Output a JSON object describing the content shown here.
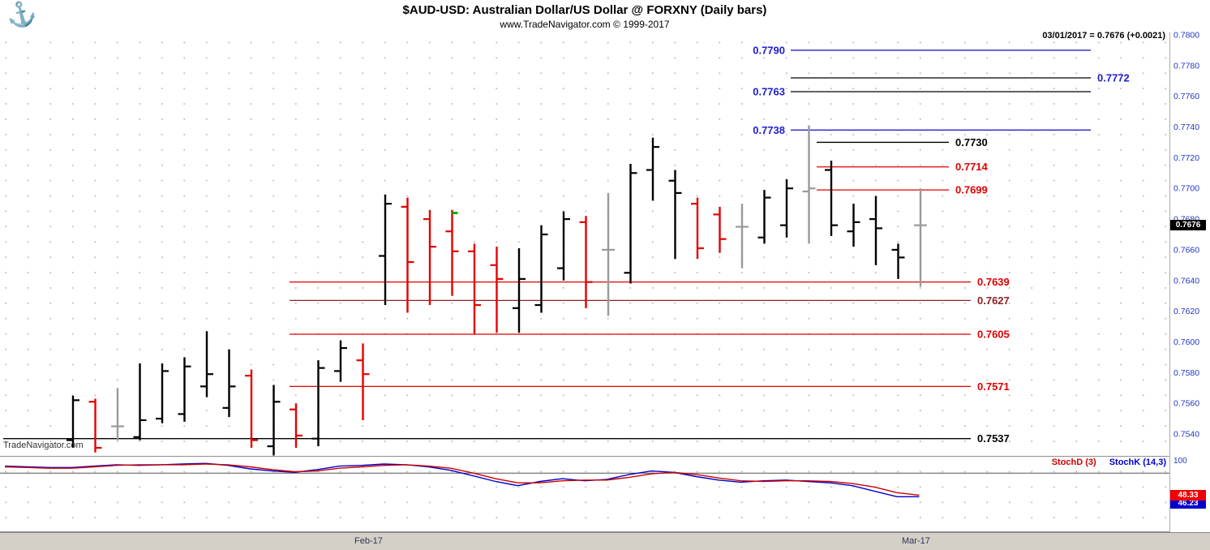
{
  "header": {
    "logo_icon": "anchor-icon",
    "title": "$AUD-USD:  Australian Dollar/US Dollar @ FORXNY  (Daily bars)",
    "subtitle": "www.TradeNavigator.com © 1999-2017",
    "quote_line": "03/01/2017 = 0.7676 (+0.0021)"
  },
  "watermark": "TradeNavigator.com",
  "price_axis": {
    "last_price_label": "0.7676",
    "last_price": 0.7676,
    "label_color": "#2336c0",
    "badge_bg": "#000000"
  },
  "stoch_panel": {
    "top_scale_label": "100",
    "legend": [
      {
        "text": "StochD (3)",
        "color": "#cc0000"
      },
      {
        "text": "StochK (14,3)",
        "color": "#0000cc"
      }
    ],
    "badges": [
      {
        "text": "48.33",
        "value": 48.33,
        "bg": "#f00000"
      },
      {
        "text": "46.23",
        "value": 46.23,
        "bg": "#0000cc"
      }
    ]
  },
  "chart_data": {
    "type": "ohlc-bar",
    "symbol": "$AUD-USD",
    "market": "FORXNY",
    "timeframe": "Daily bars",
    "last_date": "03/01/2017",
    "last_close": 0.7676,
    "change": 0.0021,
    "ylim": [
      0.754,
      0.78
    ],
    "grid": "dotted",
    "price_ticks": [
      "0.7800",
      "0.7780",
      "0.7760",
      "0.7740",
      "0.7720",
      "0.7700",
      "0.7680",
      "0.7660",
      "0.7640",
      "0.7620",
      "0.7600",
      "0.7580",
      "0.7560",
      "0.7540"
    ],
    "x_labels": [
      {
        "text": "Feb-17",
        "x": 455
      },
      {
        "text": "Mar-17",
        "x": 1130
      }
    ],
    "bars_format": [
      "open",
      "high",
      "low",
      "close",
      "color(k=black,r=red,g=gray)",
      "signal_price_optional_green"
    ],
    "bars": [
      [
        0.7536,
        0.7565,
        0.7531,
        0.7562,
        "k"
      ],
      [
        0.7561,
        0.7563,
        0.7528,
        0.7531,
        "r"
      ],
      [
        0.7545,
        0.757,
        0.7536,
        0.7545,
        "g"
      ],
      [
        0.7538,
        0.7586,
        0.7536,
        0.7549,
        "k"
      ],
      [
        0.755,
        0.7586,
        0.7547,
        0.7581,
        "k"
      ],
      [
        0.7553,
        0.759,
        0.7548,
        0.7584,
        "k"
      ],
      [
        0.7571,
        0.7607,
        0.7564,
        0.7579,
        "k"
      ],
      [
        0.7557,
        0.7595,
        0.7551,
        0.7571,
        "k"
      ],
      [
        0.7578,
        0.7582,
        0.7531,
        0.7536,
        "r"
      ],
      [
        0.7532,
        0.7572,
        0.7526,
        0.7561,
        "k"
      ],
      [
        0.7556,
        0.756,
        0.7531,
        0.7539,
        "r"
      ],
      [
        0.7537,
        0.7588,
        0.7532,
        0.7583,
        "k"
      ],
      [
        0.7581,
        0.7601,
        0.7574,
        0.7596,
        "k"
      ],
      [
        0.7588,
        0.7599,
        0.7549,
        0.7579,
        "r"
      ],
      [
        0.7656,
        0.7696,
        0.7624,
        0.769,
        "k"
      ],
      [
        0.7688,
        0.7694,
        0.7619,
        0.7652,
        "r"
      ],
      [
        0.768,
        0.7686,
        0.7624,
        0.7662,
        "r"
      ],
      [
        0.7672,
        0.7686,
        0.763,
        0.7659,
        "r",
        0.7684
      ],
      [
        0.7659,
        0.7664,
        0.7605,
        0.7624,
        "r"
      ],
      [
        0.765,
        0.7662,
        0.7606,
        0.7641,
        "r"
      ],
      [
        0.7622,
        0.7661,
        0.7606,
        0.7641,
        "k"
      ],
      [
        0.7624,
        0.7676,
        0.7619,
        0.767,
        "k"
      ],
      [
        0.7648,
        0.7685,
        0.764,
        0.768,
        "k"
      ],
      [
        0.7678,
        0.7682,
        0.7622,
        0.7639,
        "r"
      ],
      [
        0.766,
        0.7697,
        0.7617,
        0.766,
        "g"
      ],
      [
        0.7645,
        0.7716,
        0.7638,
        0.771,
        "k"
      ],
      [
        0.7712,
        0.7733,
        0.7692,
        0.7727,
        "k"
      ],
      [
        0.7705,
        0.7712,
        0.7654,
        0.7697,
        "k"
      ],
      [
        0.769,
        0.7694,
        0.7654,
        0.7661,
        "r"
      ],
      [
        0.7683,
        0.7688,
        0.7658,
        0.7667,
        "r"
      ],
      [
        0.7675,
        0.769,
        0.7648,
        0.7675,
        "g"
      ],
      [
        0.7668,
        0.7699,
        0.7664,
        0.7694,
        "k"
      ],
      [
        0.7676,
        0.7706,
        0.7668,
        0.77,
        "k"
      ],
      [
        0.7698,
        0.7741,
        0.7664,
        0.77,
        "g"
      ],
      [
        0.7712,
        0.7718,
        0.7669,
        0.7676,
        "k"
      ],
      [
        0.7672,
        0.769,
        0.7662,
        0.7678,
        "k"
      ],
      [
        0.768,
        0.7695,
        0.765,
        0.7674,
        "k"
      ],
      [
        0.766,
        0.7664,
        0.7641,
        0.7655,
        "k"
      ],
      [
        0.7676,
        0.77,
        0.7636,
        0.7676,
        "g"
      ]
    ],
    "levels": [
      {
        "price": 0.779,
        "text": "0.7790",
        "x1": 975,
        "x2": 1345,
        "side": "left",
        "line": "#2020cc",
        "label": "#2020cc"
      },
      {
        "price": 0.7772,
        "text": "0.7772",
        "x1": 975,
        "x2": 1345,
        "side": "right",
        "line": "#000000",
        "label": "#2020cc"
      },
      {
        "price": 0.7763,
        "text": "0.7763",
        "x1": 975,
        "x2": 1345,
        "side": "left",
        "line": "#000000",
        "label": "#2020cc"
      },
      {
        "price": 0.7738,
        "text": "0.7738",
        "x1": 975,
        "x2": 1345,
        "side": "left",
        "line": "#2020cc",
        "label": "#2020cc"
      },
      {
        "price": 0.773,
        "text": "0.7730",
        "x1": 1007,
        "x2": 1170,
        "side": "right",
        "line": "#000000",
        "label": "#000000"
      },
      {
        "price": 0.7714,
        "text": "0.7714",
        "x1": 1007,
        "x2": 1170,
        "side": "right",
        "line": "#e00000",
        "label": "#e00000"
      },
      {
        "price": 0.7699,
        "text": "0.7699",
        "x1": 1007,
        "x2": 1170,
        "side": "right",
        "line": "#e00000",
        "label": "#e00000"
      },
      {
        "price": 0.7639,
        "text": "0.7639",
        "x1": 357,
        "x2": 1197,
        "side": "right",
        "line": "#e00000",
        "label": "#e00000"
      },
      {
        "price": 0.7627,
        "text": "0.7627",
        "x1": 357,
        "x2": 1197,
        "side": "right",
        "line": "#8b2323",
        "label": "#8b2323"
      },
      {
        "price": 0.7605,
        "text": "0.7605",
        "x1": 357,
        "x2": 1197,
        "side": "right",
        "line": "#e00000",
        "label": "#e00000"
      },
      {
        "price": 0.7571,
        "text": "0.7571",
        "x1": 357,
        "x2": 1197,
        "side": "right",
        "line": "#e00000",
        "label": "#e00000"
      },
      {
        "price": 0.7537,
        "text": "0.7537",
        "x1": 4,
        "x2": 1197,
        "side": "right",
        "line": "#000000",
        "label": "#000000"
      }
    ],
    "stochastic": {
      "ref_line": 80,
      "k_name": "StochK (14,3)",
      "d_name": "StochD (3)",
      "k": [
        90,
        89,
        88,
        88,
        90,
        92,
        91,
        92,
        93,
        94,
        91,
        86,
        83,
        81,
        85,
        90,
        91,
        93,
        92,
        89,
        84,
        76,
        68,
        62,
        68,
        72,
        69,
        71,
        78,
        83,
        81,
        75,
        70,
        67,
        69,
        70,
        68,
        66,
        62,
        54,
        46.2,
        46.2
      ],
      "d": [
        89,
        88,
        87,
        87,
        89,
        91,
        92,
        92,
        92,
        93,
        92,
        89,
        85,
        82,
        83,
        87,
        89,
        91,
        92,
        90,
        87,
        80,
        72,
        66,
        66,
        69,
        70,
        70,
        74,
        79,
        81,
        78,
        73,
        69,
        68,
        69,
        69,
        68,
        65,
        60,
        52,
        48.33
      ],
      "range": [
        0,
        100
      ]
    },
    "colors": {
      "up": "#000000",
      "down": "#e60000",
      "neutral": "#9a9a9a",
      "signal": "#00b000",
      "stoch_k": "#0000cc",
      "stoch_d": "#cc0000"
    }
  }
}
